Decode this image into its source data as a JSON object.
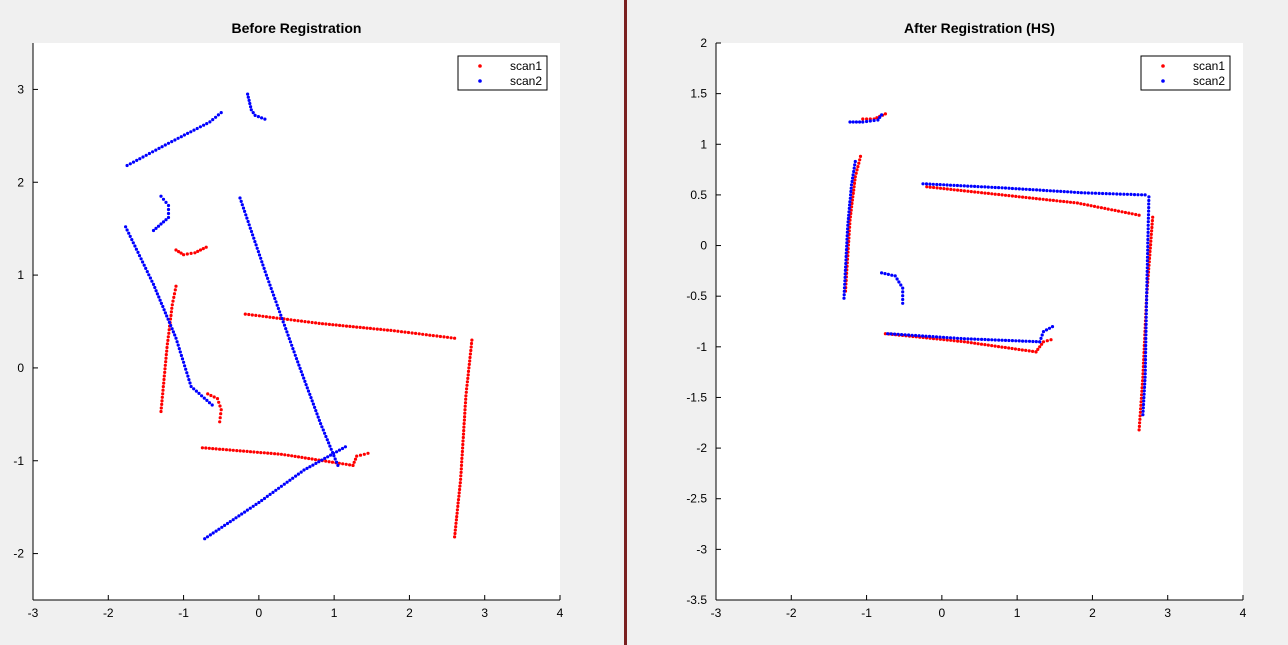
{
  "chart_data": [
    {
      "type": "scatter",
      "title": "Before Registration",
      "xlabel": "",
      "ylabel": "",
      "xlim": [
        -3,
        4
      ],
      "ylim": [
        -2.5,
        3.5
      ],
      "xticks": [
        -3,
        -2,
        -1,
        0,
        1,
        2,
        3,
        4
      ],
      "yticks": [
        -2,
        -1,
        0,
        1,
        2,
        3
      ],
      "legend_position": "top-right",
      "grid": false,
      "series": [
        {
          "name": "scan1",
          "color": "#ff0000",
          "segments": [
            [
              [
                -1.3,
                -0.47
              ],
              [
                -1.22,
                0.22
              ],
              [
                -1.15,
                0.68
              ],
              [
                -1.1,
                0.88
              ]
            ],
            [
              [
                -1.1,
                1.27
              ],
              [
                -1.0,
                1.22
              ],
              [
                -0.85,
                1.24
              ],
              [
                -0.7,
                1.3
              ]
            ],
            [
              [
                -0.68,
                -0.28
              ],
              [
                -0.55,
                -0.33
              ],
              [
                -0.5,
                -0.45
              ],
              [
                -0.52,
                -0.58
              ]
            ],
            [
              [
                -0.18,
                0.58
              ],
              [
                0.8,
                0.48
              ],
              [
                1.8,
                0.4
              ],
              [
                2.6,
                0.32
              ]
            ],
            [
              [
                2.83,
                0.3
              ],
              [
                2.75,
                -0.3
              ],
              [
                2.68,
                -1.2
              ],
              [
                2.6,
                -1.82
              ]
            ],
            [
              [
                -0.75,
                -0.86
              ],
              [
                0.3,
                -0.93
              ],
              [
                1.25,
                -1.05
              ]
            ],
            [
              [
                1.25,
                -1.05
              ],
              [
                1.3,
                -0.95
              ],
              [
                1.45,
                -0.92
              ]
            ]
          ]
        },
        {
          "name": "scan2",
          "color": "#0000ff",
          "segments": [
            [
              [
                -1.75,
                2.18
              ],
              [
                -1.2,
                2.42
              ],
              [
                -0.65,
                2.65
              ],
              [
                -0.5,
                2.75
              ]
            ],
            [
              [
                -0.15,
                2.95
              ],
              [
                -0.1,
                2.78
              ],
              [
                -0.05,
                2.72
              ],
              [
                0.08,
                2.68
              ]
            ],
            [
              [
                -1.4,
                1.48
              ],
              [
                -1.2,
                1.62
              ],
              [
                -1.2,
                1.75
              ],
              [
                -1.3,
                1.85
              ]
            ],
            [
              [
                -1.77,
                1.52
              ],
              [
                -1.4,
                0.9
              ],
              [
                -1.1,
                0.32
              ],
              [
                -0.9,
                -0.2
              ],
              [
                -0.62,
                -0.4
              ]
            ],
            [
              [
                -0.25,
                1.83
              ],
              [
                0.1,
                1.0
              ],
              [
                0.5,
                0.1
              ],
              [
                0.82,
                -0.6
              ],
              [
                1.05,
                -1.05
              ]
            ],
            [
              [
                -0.72,
                -1.84
              ],
              [
                0.0,
                -1.45
              ],
              [
                0.6,
                -1.1
              ],
              [
                1.15,
                -0.85
              ]
            ]
          ]
        }
      ]
    },
    {
      "type": "scatter",
      "title": "After Registration (HS)",
      "xlabel": "",
      "ylabel": "",
      "xlim": [
        -3,
        4
      ],
      "ylim": [
        -3.5,
        2
      ],
      "xticks": [
        -3,
        -2,
        -1,
        0,
        1,
        2,
        3,
        4
      ],
      "yticks": [
        -3.5,
        -3,
        -2.5,
        -2,
        -1.5,
        -1,
        -0.5,
        0,
        0.5,
        1,
        1.5,
        2
      ],
      "legend_position": "top-right",
      "grid": false,
      "series": [
        {
          "name": "scan1",
          "color": "#ff0000",
          "segments": [
            [
              [
                -1.05,
                1.25
              ],
              [
                -0.9,
                1.25
              ],
              [
                -0.75,
                1.3
              ]
            ],
            [
              [
                -1.28,
                -0.45
              ],
              [
                -1.22,
                0.25
              ],
              [
                -1.15,
                0.68
              ],
              [
                -1.08,
                0.88
              ]
            ],
            [
              [
                -0.2,
                0.58
              ],
              [
                0.8,
                0.5
              ],
              [
                1.8,
                0.42
              ],
              [
                2.62,
                0.3
              ]
            ],
            [
              [
                2.8,
                0.28
              ],
              [
                2.72,
                -0.5
              ],
              [
                2.67,
                -1.3
              ],
              [
                2.62,
                -1.82
              ]
            ],
            [
              [
                -0.75,
                -0.87
              ],
              [
                0.3,
                -0.95
              ],
              [
                1.25,
                -1.05
              ]
            ],
            [
              [
                1.25,
                -1.05
              ],
              [
                1.35,
                -0.95
              ],
              [
                1.45,
                -0.93
              ]
            ]
          ]
        },
        {
          "name": "scan2",
          "color": "#0000ff",
          "segments": [
            [
              [
                -1.22,
                1.22
              ],
              [
                -1.05,
                1.22
              ],
              [
                -0.85,
                1.24
              ],
              [
                -0.8,
                1.29
              ]
            ],
            [
              [
                -1.3,
                -0.52
              ],
              [
                -1.25,
                0.2
              ],
              [
                -1.2,
                0.6
              ],
              [
                -1.15,
                0.83
              ]
            ],
            [
              [
                -0.8,
                -0.27
              ],
              [
                -0.62,
                -0.3
              ],
              [
                -0.52,
                -0.42
              ],
              [
                -0.52,
                -0.57
              ]
            ],
            [
              [
                -0.25,
                0.61
              ],
              [
                0.8,
                0.57
              ],
              [
                1.9,
                0.52
              ],
              [
                2.7,
                0.5
              ]
            ],
            [
              [
                2.75,
                0.48
              ],
              [
                2.72,
                -0.5
              ],
              [
                2.7,
                -1.3
              ],
              [
                2.67,
                -1.67
              ]
            ],
            [
              [
                -0.72,
                -0.87
              ],
              [
                0.3,
                -0.92
              ],
              [
                1.3,
                -0.95
              ]
            ],
            [
              [
                1.3,
                -0.95
              ],
              [
                1.35,
                -0.85
              ],
              [
                1.47,
                -0.8
              ]
            ]
          ]
        }
      ]
    }
  ]
}
